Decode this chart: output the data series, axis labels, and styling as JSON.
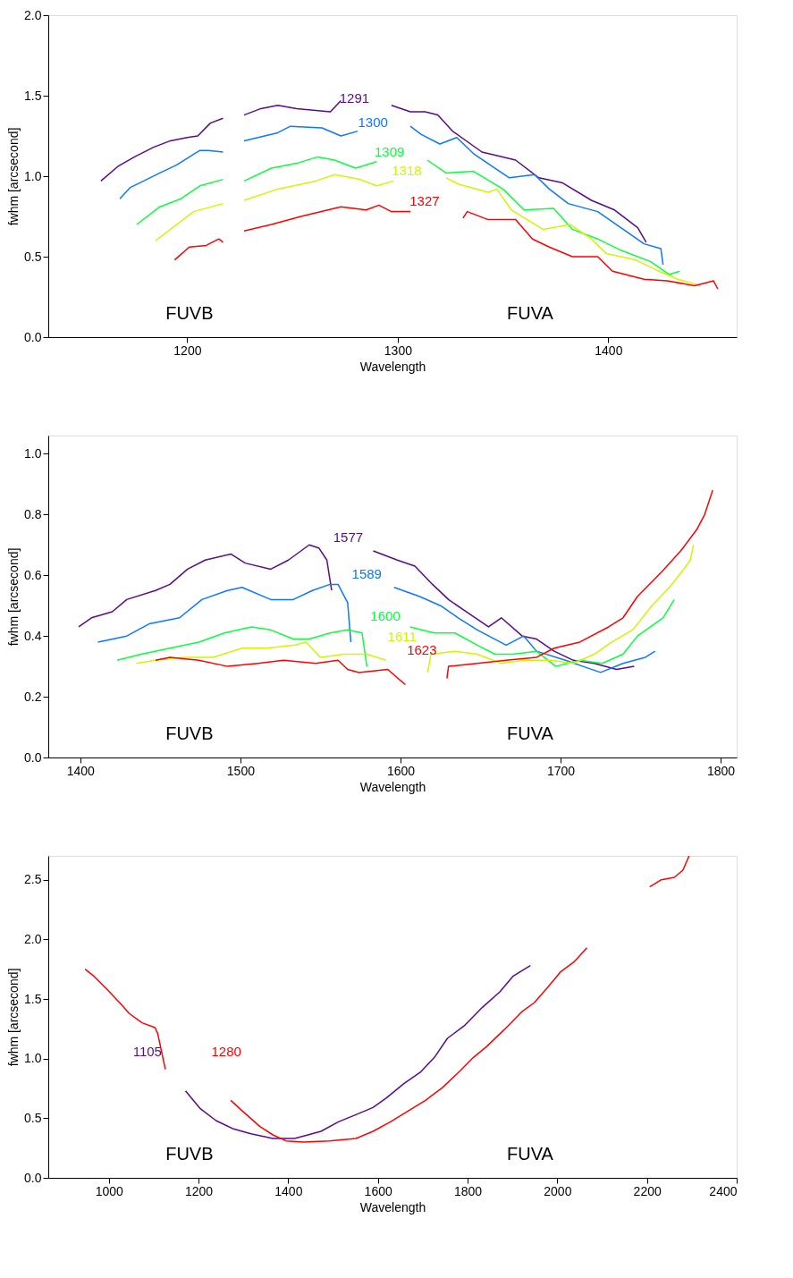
{
  "chart_data": [
    {
      "type": "line",
      "xlabel": "Wavelength",
      "ylabel": "fwhm [arcsecond]",
      "xlim": [
        1134,
        1461
      ],
      "xticks": [
        1200,
        1300,
        1400
      ],
      "ylim": [
        0,
        2.0
      ],
      "yticks": [
        {
          "value": 0,
          "label": "0.0"
        },
        {
          "value": 0.5,
          "label": "0.5"
        },
        {
          "value": 1.0,
          "label": "1.0"
        },
        {
          "value": 1.5,
          "label": "1.5"
        },
        {
          "value": 2.0,
          "label": "2.0"
        }
      ],
      "series": [
        {
          "color": "#5a0a8c",
          "x": [
            1159,
            1167,
            1175,
            1184,
            1192,
            1200,
            1205,
            1211,
            1217
          ],
          "values": [
            0.97,
            1.06,
            1.12,
            1.18,
            1.22,
            1.24,
            1.25,
            1.33,
            1.36
          ]
        },
        {
          "color": "#5a0a8c",
          "x": [
            1227,
            1235,
            1243,
            1252,
            1260,
            1268,
            1273
          ],
          "values": [
            1.38,
            1.42,
            1.44,
            1.42,
            1.41,
            1.4,
            1.47
          ]
        },
        {
          "color": "#5a0a8c",
          "x": [
            1297,
            1306,
            1313,
            1319,
            1326,
            1340,
            1356,
            1367,
            1378,
            1392,
            1403,
            1414,
            1418
          ],
          "values": [
            1.44,
            1.4,
            1.4,
            1.38,
            1.28,
            1.15,
            1.1,
            0.99,
            0.96,
            0.85,
            0.79,
            0.68,
            0.59
          ]
        },
        {
          "color": "#0a78ff",
          "x": [
            1168,
            1173,
            1187,
            1195,
            1206,
            1210,
            1217
          ],
          "values": [
            0.86,
            0.93,
            1.02,
            1.07,
            1.16,
            1.16,
            1.15
          ]
        },
        {
          "color": "#0a78ff",
          "x": [
            1227,
            1243,
            1249,
            1264,
            1273,
            1281
          ],
          "values": [
            1.22,
            1.27,
            1.31,
            1.3,
            1.25,
            1.28
          ]
        },
        {
          "color": "#0a78ff",
          "x": [
            1306,
            1311,
            1320,
            1328,
            1336,
            1353,
            1365,
            1372,
            1381,
            1395,
            1406,
            1417,
            1425,
            1426
          ],
          "values": [
            1.31,
            1.26,
            1.2,
            1.24,
            1.14,
            0.99,
            1.01,
            0.92,
            0.83,
            0.78,
            0.68,
            0.58,
            0.55,
            0.45
          ]
        },
        {
          "color": "#0aff3c",
          "x": [
            1176,
            1187,
            1197,
            1206,
            1217
          ],
          "values": [
            0.7,
            0.81,
            0.86,
            0.94,
            0.98
          ]
        },
        {
          "color": "#0aff3c",
          "x": [
            1227,
            1240,
            1252,
            1262,
            1270,
            1280,
            1290
          ],
          "values": [
            0.97,
            1.05,
            1.08,
            1.12,
            1.1,
            1.05,
            1.09
          ]
        },
        {
          "color": "#0aff3c",
          "x": [
            1314,
            1323,
            1336,
            1350,
            1360,
            1374,
            1383,
            1395,
            1406,
            1420,
            1429,
            1434
          ],
          "values": [
            1.1,
            1.02,
            1.03,
            0.92,
            0.79,
            0.8,
            0.67,
            0.61,
            0.54,
            0.47,
            0.39,
            0.41
          ]
        },
        {
          "color": "#d2f500",
          "x": [
            1185,
            1195,
            1203,
            1217
          ],
          "values": [
            0.6,
            0.7,
            0.78,
            0.83
          ]
        },
        {
          "color": "#d2f500",
          "x": [
            1227,
            1243,
            1261,
            1270,
            1282,
            1290,
            1298
          ],
          "values": [
            0.85,
            0.92,
            0.97,
            1.01,
            0.98,
            0.94,
            0.97
          ]
        },
        {
          "color": "#d2f500",
          "x": [
            1323,
            1329,
            1343,
            1347,
            1354,
            1369,
            1382,
            1392,
            1399,
            1413,
            1424,
            1433,
            1444
          ],
          "values": [
            0.99,
            0.95,
            0.9,
            0.92,
            0.79,
            0.67,
            0.7,
            0.61,
            0.52,
            0.48,
            0.41,
            0.36,
            0.32
          ]
        },
        {
          "color": "#ff0000",
          "x": [
            1194,
            1201,
            1209,
            1215,
            1217
          ],
          "values": [
            0.48,
            0.56,
            0.57,
            0.61,
            0.59
          ]
        },
        {
          "color": "#ff0000",
          "x": [
            1227,
            1240,
            1254,
            1273,
            1285,
            1291,
            1297,
            1306
          ],
          "values": [
            0.66,
            0.7,
            0.75,
            0.81,
            0.79,
            0.82,
            0.78,
            0.78
          ]
        },
        {
          "color": "#ff0000",
          "x": [
            1331,
            1333,
            1343,
            1356,
            1364,
            1372,
            1383,
            1395,
            1402,
            1417,
            1428,
            1441,
            1450,
            1452
          ],
          "values": [
            0.74,
            0.78,
            0.73,
            0.73,
            0.61,
            0.56,
            0.5,
            0.5,
            0.41,
            0.36,
            0.35,
            0.32,
            0.35,
            0.3
          ]
        }
      ],
      "annotations": [
        "FUVB",
        "FUVA",
        "1291",
        "1300",
        "1309",
        "1318",
        "1327"
      ]
    },
    {
      "type": "line",
      "xlabel": "Wavelength",
      "ylabel": "fwhm [arcsecond]",
      "xlim": [
        1380,
        1810
      ],
      "xticks": [
        1400,
        1500,
        1600,
        1700,
        1800
      ],
      "ylim": [
        0,
        1.06
      ],
      "yticks": [
        {
          "value": 0,
          "label": "0.0"
        },
        {
          "value": 0.2,
          "label": "0.2"
        },
        {
          "value": 0.4,
          "label": "0.4"
        },
        {
          "value": 0.6,
          "label": "0.6"
        },
        {
          "value": 0.8,
          "label": "0.8"
        },
        {
          "value": 1.0,
          "label": "1.0"
        }
      ],
      "series": [
        {
          "color": "#5a0a8c",
          "x": [
            1399,
            1407,
            1420,
            1429,
            1447,
            1456,
            1467,
            1478,
            1494,
            1503,
            1519,
            1530,
            1543,
            1549,
            1554,
            1557
          ],
          "values": [
            0.43,
            0.46,
            0.48,
            0.52,
            0.55,
            0.57,
            0.62,
            0.65,
            0.67,
            0.64,
            0.62,
            0.65,
            0.7,
            0.69,
            0.65,
            0.55
          ]
        },
        {
          "color": "#5a0a8c",
          "x": [
            1583,
            1598,
            1609,
            1620,
            1630,
            1641,
            1655,
            1663,
            1676,
            1685,
            1696,
            1708,
            1721,
            1735,
            1746
          ],
          "values": [
            0.68,
            0.65,
            0.63,
            0.57,
            0.52,
            0.48,
            0.43,
            0.46,
            0.4,
            0.39,
            0.35,
            0.32,
            0.31,
            0.29,
            0.3
          ]
        },
        {
          "color": "#0a78ff",
          "x": [
            1411,
            1429,
            1443,
            1462,
            1476,
            1492,
            1501,
            1519,
            1533,
            1545,
            1556,
            1561,
            1567,
            1569
          ],
          "values": [
            0.38,
            0.4,
            0.44,
            0.46,
            0.52,
            0.55,
            0.56,
            0.52,
            0.52,
            0.55,
            0.57,
            0.57,
            0.51,
            0.38
          ]
        },
        {
          "color": "#0a78ff",
          "x": [
            1596,
            1612,
            1625,
            1636,
            1648,
            1666,
            1677,
            1685,
            1703,
            1714,
            1725,
            1739,
            1753,
            1759
          ],
          "values": [
            0.56,
            0.53,
            0.5,
            0.46,
            0.42,
            0.37,
            0.4,
            0.35,
            0.32,
            0.3,
            0.28,
            0.31,
            0.33,
            0.35
          ]
        },
        {
          "color": "#0aff3c",
          "x": [
            1423,
            1438,
            1456,
            1474,
            1490,
            1507,
            1519,
            1533,
            1543,
            1556,
            1567,
            1576,
            1579
          ],
          "values": [
            0.32,
            0.34,
            0.36,
            0.38,
            0.41,
            0.43,
            0.42,
            0.39,
            0.39,
            0.41,
            0.42,
            0.41,
            0.3
          ]
        },
        {
          "color": "#0aff3c",
          "x": [
            1606,
            1621,
            1634,
            1648,
            1659,
            1670,
            1685,
            1697,
            1712,
            1726,
            1739,
            1748,
            1764,
            1771
          ],
          "values": [
            0.43,
            0.41,
            0.41,
            0.37,
            0.34,
            0.34,
            0.35,
            0.3,
            0.32,
            0.31,
            0.34,
            0.4,
            0.46,
            0.52
          ]
        },
        {
          "color": "#d2f500",
          "x": [
            1435,
            1447,
            1465,
            1483,
            1501,
            1516,
            1534,
            1541,
            1550,
            1565,
            1579,
            1591
          ],
          "values": [
            0.31,
            0.32,
            0.33,
            0.33,
            0.36,
            0.36,
            0.37,
            0.38,
            0.33,
            0.34,
            0.34,
            0.32
          ]
        },
        {
          "color": "#d2f500",
          "x": [
            1617,
            1619,
            1634,
            1648,
            1663,
            1677,
            1694,
            1708,
            1721,
            1732,
            1745,
            1757,
            1768,
            1777,
            1781,
            1783
          ],
          "values": [
            0.28,
            0.34,
            0.35,
            0.34,
            0.31,
            0.32,
            0.32,
            0.31,
            0.34,
            0.38,
            0.42,
            0.5,
            0.56,
            0.62,
            0.65,
            0.7
          ]
        },
        {
          "color": "#ff0000",
          "x": [
            1447,
            1456,
            1474,
            1492,
            1511,
            1527,
            1547,
            1561,
            1567,
            1574,
            1592,
            1603
          ],
          "values": [
            0.32,
            0.33,
            0.32,
            0.3,
            0.31,
            0.32,
            0.31,
            0.32,
            0.29,
            0.28,
            0.29,
            0.24
          ]
        },
        {
          "color": "#ff0000",
          "x": [
            1629,
            1630,
            1648,
            1666,
            1685,
            1696,
            1712,
            1730,
            1739,
            1748,
            1763,
            1775,
            1785,
            1790,
            1795
          ],
          "values": [
            0.26,
            0.3,
            0.31,
            0.32,
            0.33,
            0.36,
            0.38,
            0.43,
            0.46,
            0.53,
            0.61,
            0.68,
            0.75,
            0.8,
            0.88
          ]
        }
      ],
      "annotations": [
        "FUVB",
        "FUVA",
        "1577",
        "1589",
        "1600",
        "1611",
        "1623"
      ]
    },
    {
      "type": "line",
      "xlabel": "Wavelength",
      "ylabel": "fwhm [arcsecond]",
      "xlim": [
        865,
        2400
      ],
      "xticks": [
        1000,
        1200,
        1400,
        1600,
        1800,
        2000,
        2200,
        2400
      ],
      "ylim": [
        0,
        2.7
      ],
      "yticks": [
        {
          "value": 0,
          "label": "0.0"
        },
        {
          "value": 0.5,
          "label": "0.5"
        },
        {
          "value": 1.0,
          "label": "1.0"
        },
        {
          "value": 1.5,
          "label": "1.5"
        },
        {
          "value": 2.0,
          "label": "2.0"
        },
        {
          "value": 2.5,
          "label": "2.5"
        }
      ],
      "series": [
        {
          "color": "#5a0a8c",
          "x": [
            1171,
            1204,
            1239,
            1278,
            1317,
            1366,
            1414,
            1444,
            1473,
            1512,
            1551,
            1589,
            1619,
            1658,
            1696,
            1726,
            1755,
            1794,
            1833,
            1872,
            1901,
            1940
          ],
          "values": [
            0.73,
            0.58,
            0.48,
            0.41,
            0.37,
            0.33,
            0.33,
            0.36,
            0.39,
            0.47,
            0.53,
            0.59,
            0.67,
            0.79,
            0.89,
            1.01,
            1.17,
            1.28,
            1.43,
            1.56,
            1.69,
            1.78
          ]
        },
        {
          "color": "#ff0000",
          "x": [
            947,
            967,
            996,
            1029,
            1045,
            1074,
            1103,
            1109,
            1126
          ],
          "values": [
            1.75,
            1.69,
            1.58,
            1.45,
            1.38,
            1.3,
            1.26,
            1.21,
            0.91
          ]
        },
        {
          "color": "#ff0000",
          "x": [
            1272,
            1298,
            1337,
            1366,
            1395,
            1434,
            1492,
            1551,
            1589,
            1628,
            1667,
            1706,
            1745,
            1784,
            1813,
            1842,
            1881,
            1920,
            1949,
            1979,
            2008,
            2037,
            2066
          ],
          "values": [
            0.65,
            0.56,
            0.43,
            0.36,
            0.31,
            0.3,
            0.31,
            0.33,
            0.39,
            0.47,
            0.56,
            0.65,
            0.76,
            0.9,
            1.01,
            1.1,
            1.24,
            1.39,
            1.47,
            1.6,
            1.73,
            1.81,
            1.93
          ]
        },
        {
          "color": "#ff0000",
          "x": [
            2206,
            2232,
            2261,
            2280,
            2294
          ],
          "values": [
            2.44,
            2.5,
            2.52,
            2.58,
            2.7
          ]
        }
      ],
      "annotations": [
        "FUVB",
        "FUVA",
        "1105",
        "1280"
      ]
    }
  ]
}
